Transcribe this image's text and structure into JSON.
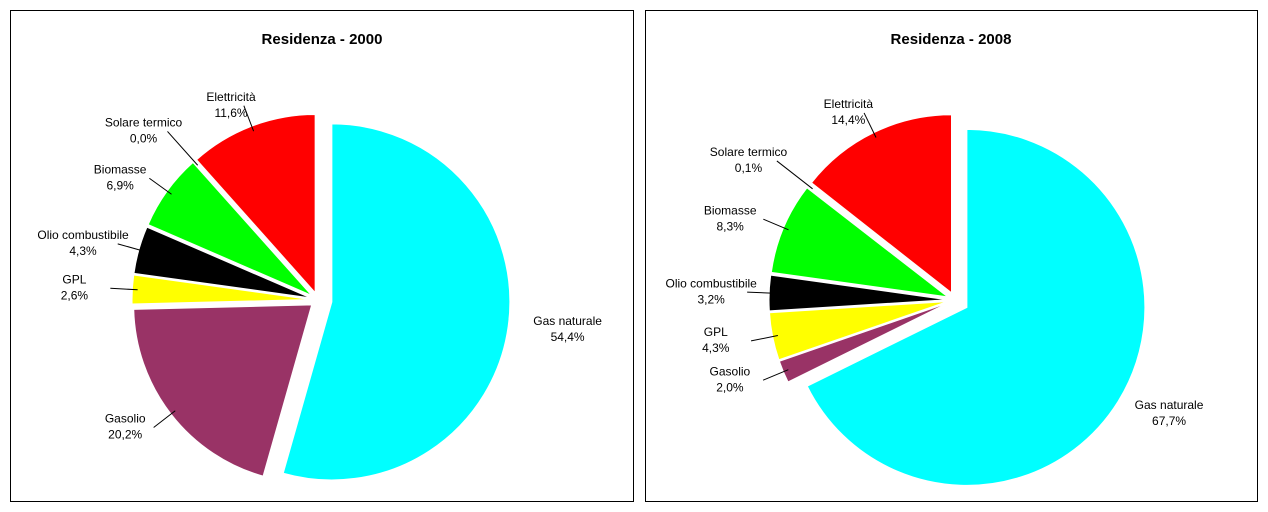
{
  "chart_data": [
    {
      "type": "pie",
      "title": "Residenza - 2000",
      "categories": [
        "Gas naturale",
        "Gasolio",
        "GPL",
        "Olio combustibile",
        "Biomasse",
        "Solare termico",
        "Elettricità"
      ],
      "values": [
        54.4,
        20.2,
        2.6,
        4.3,
        6.9,
        0.0,
        11.6
      ],
      "value_labels": [
        "54,4%",
        "20,2%",
        "2,6%",
        "4,3%",
        "6,9%",
        "0,0%",
        "11,6%"
      ],
      "colors": [
        "#00ffff",
        "#993366",
        "#ffff00",
        "#000000",
        "#00ff00",
        "#ffffcc",
        "#ff0000"
      ]
    },
    {
      "type": "pie",
      "title": "Residenza - 2008",
      "categories": [
        "Gas naturale",
        "Gasolio",
        "GPL",
        "Olio combustibile",
        "Biomasse",
        "Solare termico",
        "Elettricità"
      ],
      "values": [
        67.7,
        2.0,
        4.3,
        3.2,
        8.3,
        0.1,
        14.4
      ],
      "value_labels": [
        "67,7%",
        "2,0%",
        "4,3%",
        "3,2%",
        "8,3%",
        "0,1%",
        "14,4%"
      ],
      "colors": [
        "#00ffff",
        "#993366",
        "#ffff00",
        "#000000",
        "#00ff00",
        "#ffffcc",
        "#ff0000"
      ]
    }
  ]
}
